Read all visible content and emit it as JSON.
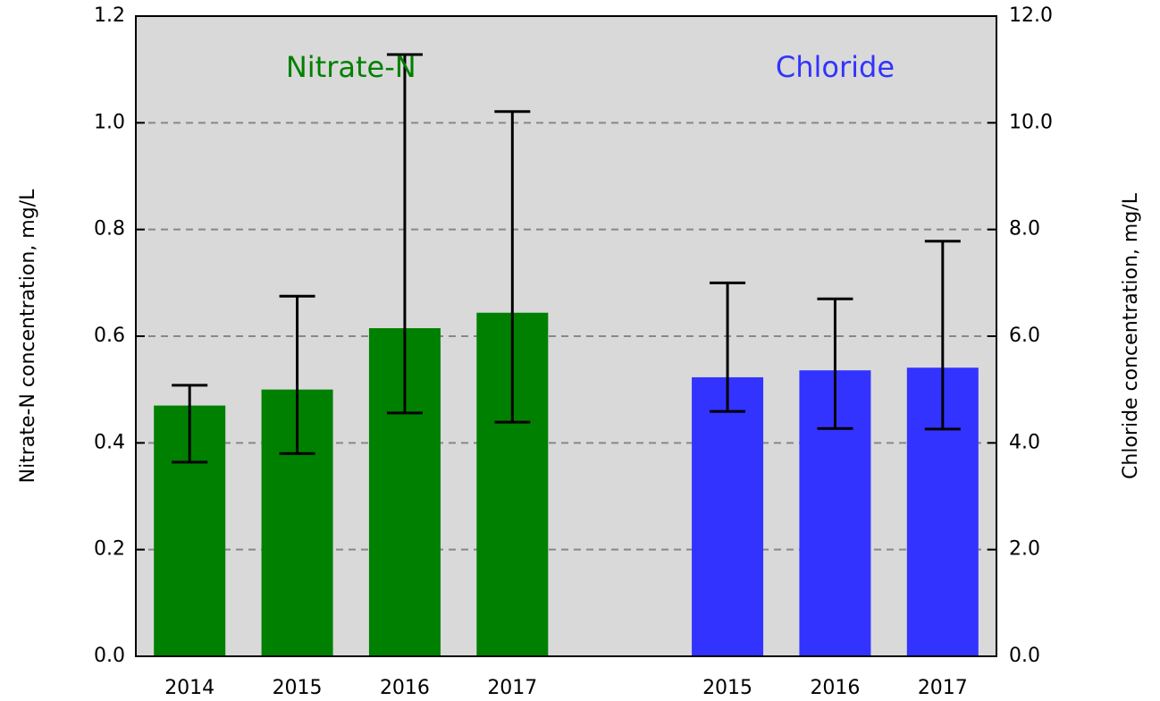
{
  "chart_data": {
    "type": "bar",
    "categories": [
      "2014",
      "2015",
      "2016",
      "2017",
      null,
      "2015",
      "2016",
      "2017"
    ],
    "ylabel": "Nitrate-N concentration, mg/L",
    "y2label": "Chloride concentration, mg/L",
    "ylim": [
      0,
      1.2
    ],
    "yticks": [
      {
        "value": 0,
        "label": "0.0"
      },
      0.2,
      0.4,
      0.6,
      0.8,
      {
        "value": 1,
        "label": "1.0"
      },
      1.2
    ],
    "y2lim": [
      0,
      12
    ],
    "y2ticks": [
      {
        "value": 0,
        "label": "0.0"
      },
      {
        "value": 2,
        "label": "2.0"
      },
      {
        "value": 4,
        "label": "4.0"
      },
      {
        "value": 6,
        "label": "6.0"
      },
      {
        "value": 8,
        "label": "8.0"
      },
      {
        "value": 10,
        "label": "10.0"
      },
      {
        "value": 12,
        "label": "12.0"
      }
    ],
    "grid": true,
    "series": [
      {
        "name": "Nitrate-N",
        "color": "#008000",
        "axis": "y",
        "values": [
          0.47,
          0.5,
          0.615,
          0.644,
          null,
          null,
          null,
          null
        ],
        "error_low": [
          0.364,
          0.38,
          0.456,
          0.439,
          null,
          null,
          null,
          null
        ],
        "error_high": [
          0.508,
          0.675,
          1.128,
          1.021,
          null,
          null,
          null,
          null
        ]
      },
      {
        "name": "Chloride",
        "color": "#3333ff",
        "axis": "y2",
        "values": [
          null,
          null,
          null,
          null,
          null,
          5.23,
          5.36,
          5.41
        ],
        "error_low": [
          null,
          null,
          null,
          null,
          null,
          4.59,
          4.27,
          4.26
        ],
        "error_high": [
          null,
          null,
          null,
          null,
          null,
          7.0,
          6.7,
          7.78
        ]
      }
    ]
  }
}
